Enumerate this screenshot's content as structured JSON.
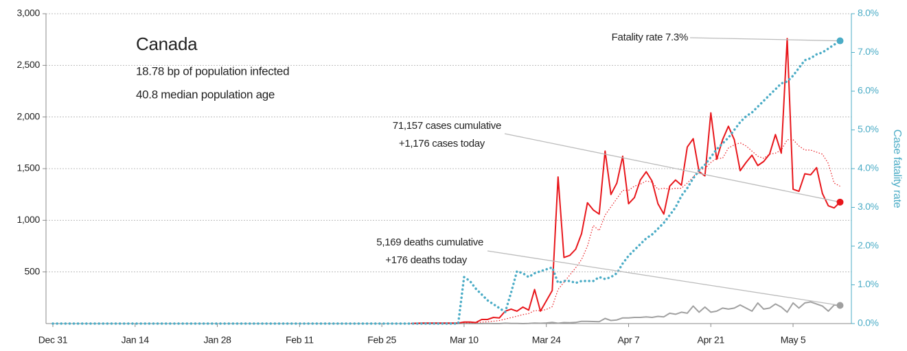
{
  "chart_data": {
    "type": "line",
    "title": "Canada",
    "subtitle": [
      "18.78 bp of population infected",
      "40.8 median population age"
    ],
    "annotations": {
      "cases": [
        "71,157 cases cumulative",
        "+1,176 cases today"
      ],
      "deaths": [
        "5,169 deaths cumulative",
        "+176 deaths today"
      ],
      "fatality": "Fatality rate 7.3%"
    },
    "y2_label": "Case fatality rate",
    "categories": [
      "Dec 31",
      null,
      null,
      null,
      null,
      null,
      null,
      null,
      null,
      null,
      null,
      null,
      null,
      null,
      "Jan 14",
      null,
      null,
      null,
      null,
      null,
      null,
      null,
      null,
      null,
      null,
      null,
      null,
      null,
      "Jan 28",
      null,
      null,
      null,
      null,
      null,
      null,
      null,
      null,
      null,
      null,
      null,
      null,
      null,
      "Feb 11",
      null,
      null,
      null,
      null,
      null,
      null,
      null,
      null,
      null,
      null,
      null,
      null,
      null,
      "Feb 25",
      null,
      null,
      null,
      null,
      null,
      null,
      null,
      null,
      null,
      null,
      null,
      null,
      null,
      "Mar 10",
      null,
      null,
      null,
      null,
      null,
      null,
      null,
      null,
      null,
      null,
      null,
      null,
      null,
      "Mar 24",
      null,
      null,
      null,
      null,
      null,
      null,
      null,
      null,
      null,
      null,
      null,
      null,
      null,
      "Apr 7",
      null,
      null,
      null,
      null,
      null,
      null,
      null,
      null,
      null,
      null,
      null,
      null,
      null,
      "Apr 21",
      null,
      null,
      null,
      null,
      null,
      null,
      null,
      null,
      null,
      null,
      null,
      null,
      null,
      "May 5",
      null,
      null,
      null,
      null,
      null,
      null,
      null,
      null
    ],
    "ylim": [
      0,
      3000
    ],
    "yticks": [
      500,
      {
        "value": 1000,
        "label": "1,000"
      },
      {
        "value": 1500,
        "label": "1,500"
      },
      {
        "value": 2000,
        "label": "2,000"
      },
      {
        "value": 2500,
        "label": "2,500"
      },
      {
        "value": 3000,
        "label": "3,000"
      }
    ],
    "y2lim": [
      0,
      8
    ],
    "y2ticks": [
      {
        "value": 0,
        "label": "0.0%"
      },
      {
        "value": 1,
        "label": "1.0%"
      },
      {
        "value": 2,
        "label": "2.0%"
      },
      {
        "value": 3,
        "label": "3.0%"
      },
      {
        "value": 4,
        "label": "4.0%"
      },
      {
        "value": 5,
        "label": "5.0%"
      },
      {
        "value": 6,
        "label": "6.0%"
      },
      {
        "value": 7,
        "label": "7.0%"
      },
      {
        "value": 8,
        "label": "8.0%"
      }
    ],
    "grid": true,
    "series": [
      {
        "color": "#a0a0a0",
        "style": "solid",
        "values": [
          null,
          null,
          null,
          null,
          null,
          null,
          null,
          null,
          null,
          null,
          null,
          null,
          null,
          null,
          null,
          null,
          null,
          null,
          null,
          null,
          null,
          null,
          null,
          null,
          null,
          null,
          null,
          null,
          null,
          null,
          null,
          null,
          null,
          null,
          null,
          null,
          null,
          null,
          null,
          null,
          null,
          null,
          null,
          null,
          null,
          null,
          null,
          null,
          null,
          null,
          null,
          null,
          null,
          null,
          null,
          null,
          null,
          null,
          null,
          null,
          null,
          0,
          0,
          0,
          0,
          0,
          0,
          0,
          0,
          0,
          1,
          0,
          0,
          0,
          1,
          0,
          0,
          4,
          2,
          1,
          0,
          2,
          5,
          3,
          6,
          12,
          3,
          10,
          8,
          11,
          22,
          22,
          20,
          18,
          50,
          30,
          35,
          55,
          55,
          60,
          60,
          65,
          60,
          70,
          65,
          100,
          90,
          110,
          100,
          170,
          110,
          160,
          110,
          120,
          150,
          140,
          150,
          180,
          150,
          120,
          200,
          140,
          150,
          190,
          160,
          110,
          200,
          150,
          200,
          210,
          190,
          170,
          120,
          180,
          176
        ]
      },
      {
        "color": "#e8161b",
        "style": "dotted",
        "values": [
          null,
          null,
          null,
          null,
          null,
          null,
          null,
          null,
          null,
          null,
          null,
          null,
          null,
          null,
          null,
          null,
          null,
          null,
          null,
          null,
          null,
          null,
          null,
          null,
          null,
          null,
          null,
          null,
          null,
          null,
          null,
          null,
          null,
          null,
          null,
          null,
          null,
          null,
          null,
          null,
          null,
          null,
          null,
          null,
          null,
          null,
          null,
          null,
          null,
          null,
          null,
          null,
          null,
          null,
          null,
          null,
          null,
          null,
          null,
          null,
          null,
          2,
          3,
          3,
          4,
          4,
          4,
          5,
          5,
          5,
          7,
          8,
          9,
          13,
          17,
          23,
          29,
          44,
          58,
          72,
          87,
          97,
          126,
          125,
          137,
          164,
          330,
          400,
          470,
          540,
          620,
          750,
          950,
          900,
          1050,
          1130,
          1210,
          1290,
          1290,
          1330,
          1350,
          1380,
          1370,
          1300,
          1310,
          1300,
          1310,
          1310,
          1360,
          1420,
          1490,
          1500,
          1560,
          1600,
          1600,
          1700,
          1730,
          1750,
          1720,
          1670,
          1620,
          1600,
          1640,
          1650,
          1680,
          1780,
          1780,
          1720,
          1680,
          1680,
          1660,
          1640,
          1550,
          1360,
          1330
        ]
      },
      {
        "color": "#e8161b",
        "style": "solid",
        "values": [
          null,
          null,
          null,
          null,
          null,
          null,
          null,
          null,
          null,
          null,
          null,
          null,
          null,
          null,
          null,
          null,
          null,
          null,
          null,
          null,
          null,
          null,
          null,
          null,
          null,
          null,
          null,
          null,
          null,
          null,
          null,
          null,
          null,
          null,
          null,
          null,
          null,
          null,
          null,
          null,
          null,
          null,
          null,
          null,
          null,
          null,
          null,
          null,
          null,
          null,
          null,
          null,
          null,
          null,
          null,
          null,
          null,
          null,
          null,
          null,
          null,
          2,
          3,
          5,
          5,
          5,
          5,
          5,
          5,
          5,
          15,
          15,
          10,
          40,
          40,
          60,
          55,
          120,
          140,
          120,
          160,
          130,
          330,
          120,
          220,
          320,
          1420,
          640,
          660,
          720,
          870,
          1170,
          1100,
          1060,
          1670,
          1250,
          1360,
          1620,
          1160,
          1220,
          1390,
          1470,
          1380,
          1160,
          1060,
          1330,
          1390,
          1340,
          1710,
          1790,
          1470,
          1430,
          2040,
          1590,
          1780,
          1910,
          1780,
          1480,
          1560,
          1630,
          1530,
          1570,
          1640,
          1830,
          1650,
          2760,
          1300,
          1280,
          1450,
          1440,
          1510,
          1260,
          1140,
          1120,
          1176
        ]
      },
      {
        "color": "#4bacc6",
        "style": "dotted",
        "axis": "y2",
        "values": [
          0,
          0,
          0,
          0,
          0,
          0,
          0,
          0,
          0,
          0,
          0,
          0,
          0,
          0,
          0,
          0,
          0,
          0,
          0,
          0,
          0,
          0,
          0,
          0,
          0,
          0,
          0,
          0,
          0,
          0,
          0,
          0,
          0,
          0,
          0,
          0,
          0,
          0,
          0,
          0,
          0,
          0,
          0,
          0,
          0,
          0,
          0,
          0,
          0,
          0,
          0,
          0,
          0,
          0,
          0,
          0,
          0,
          0,
          0,
          0,
          0,
          0,
          0,
          0,
          0,
          0,
          0,
          0,
          0,
          0,
          1.2,
          1.1,
          0.9,
          0.75,
          0.6,
          0.5,
          0.4,
          0.3,
          0.8,
          1.35,
          1.3,
          1.2,
          1.3,
          1.35,
          1.4,
          1.45,
          1.05,
          1.1,
          1.1,
          1.05,
          1.1,
          1.1,
          1.1,
          1.2,
          1.15,
          1.2,
          1.3,
          1.55,
          1.75,
          1.9,
          2.05,
          2.2,
          2.3,
          2.45,
          2.6,
          2.8,
          3.0,
          3.3,
          3.5,
          3.75,
          3.95,
          4.1,
          4.3,
          4.5,
          4.65,
          4.8,
          5.0,
          5.2,
          5.35,
          5.45,
          5.6,
          5.75,
          5.9,
          6.05,
          6.2,
          6.25,
          6.4,
          6.6,
          6.8,
          6.85,
          6.95,
          7.0,
          7.1,
          7.2,
          7.3
        ]
      }
    ]
  }
}
